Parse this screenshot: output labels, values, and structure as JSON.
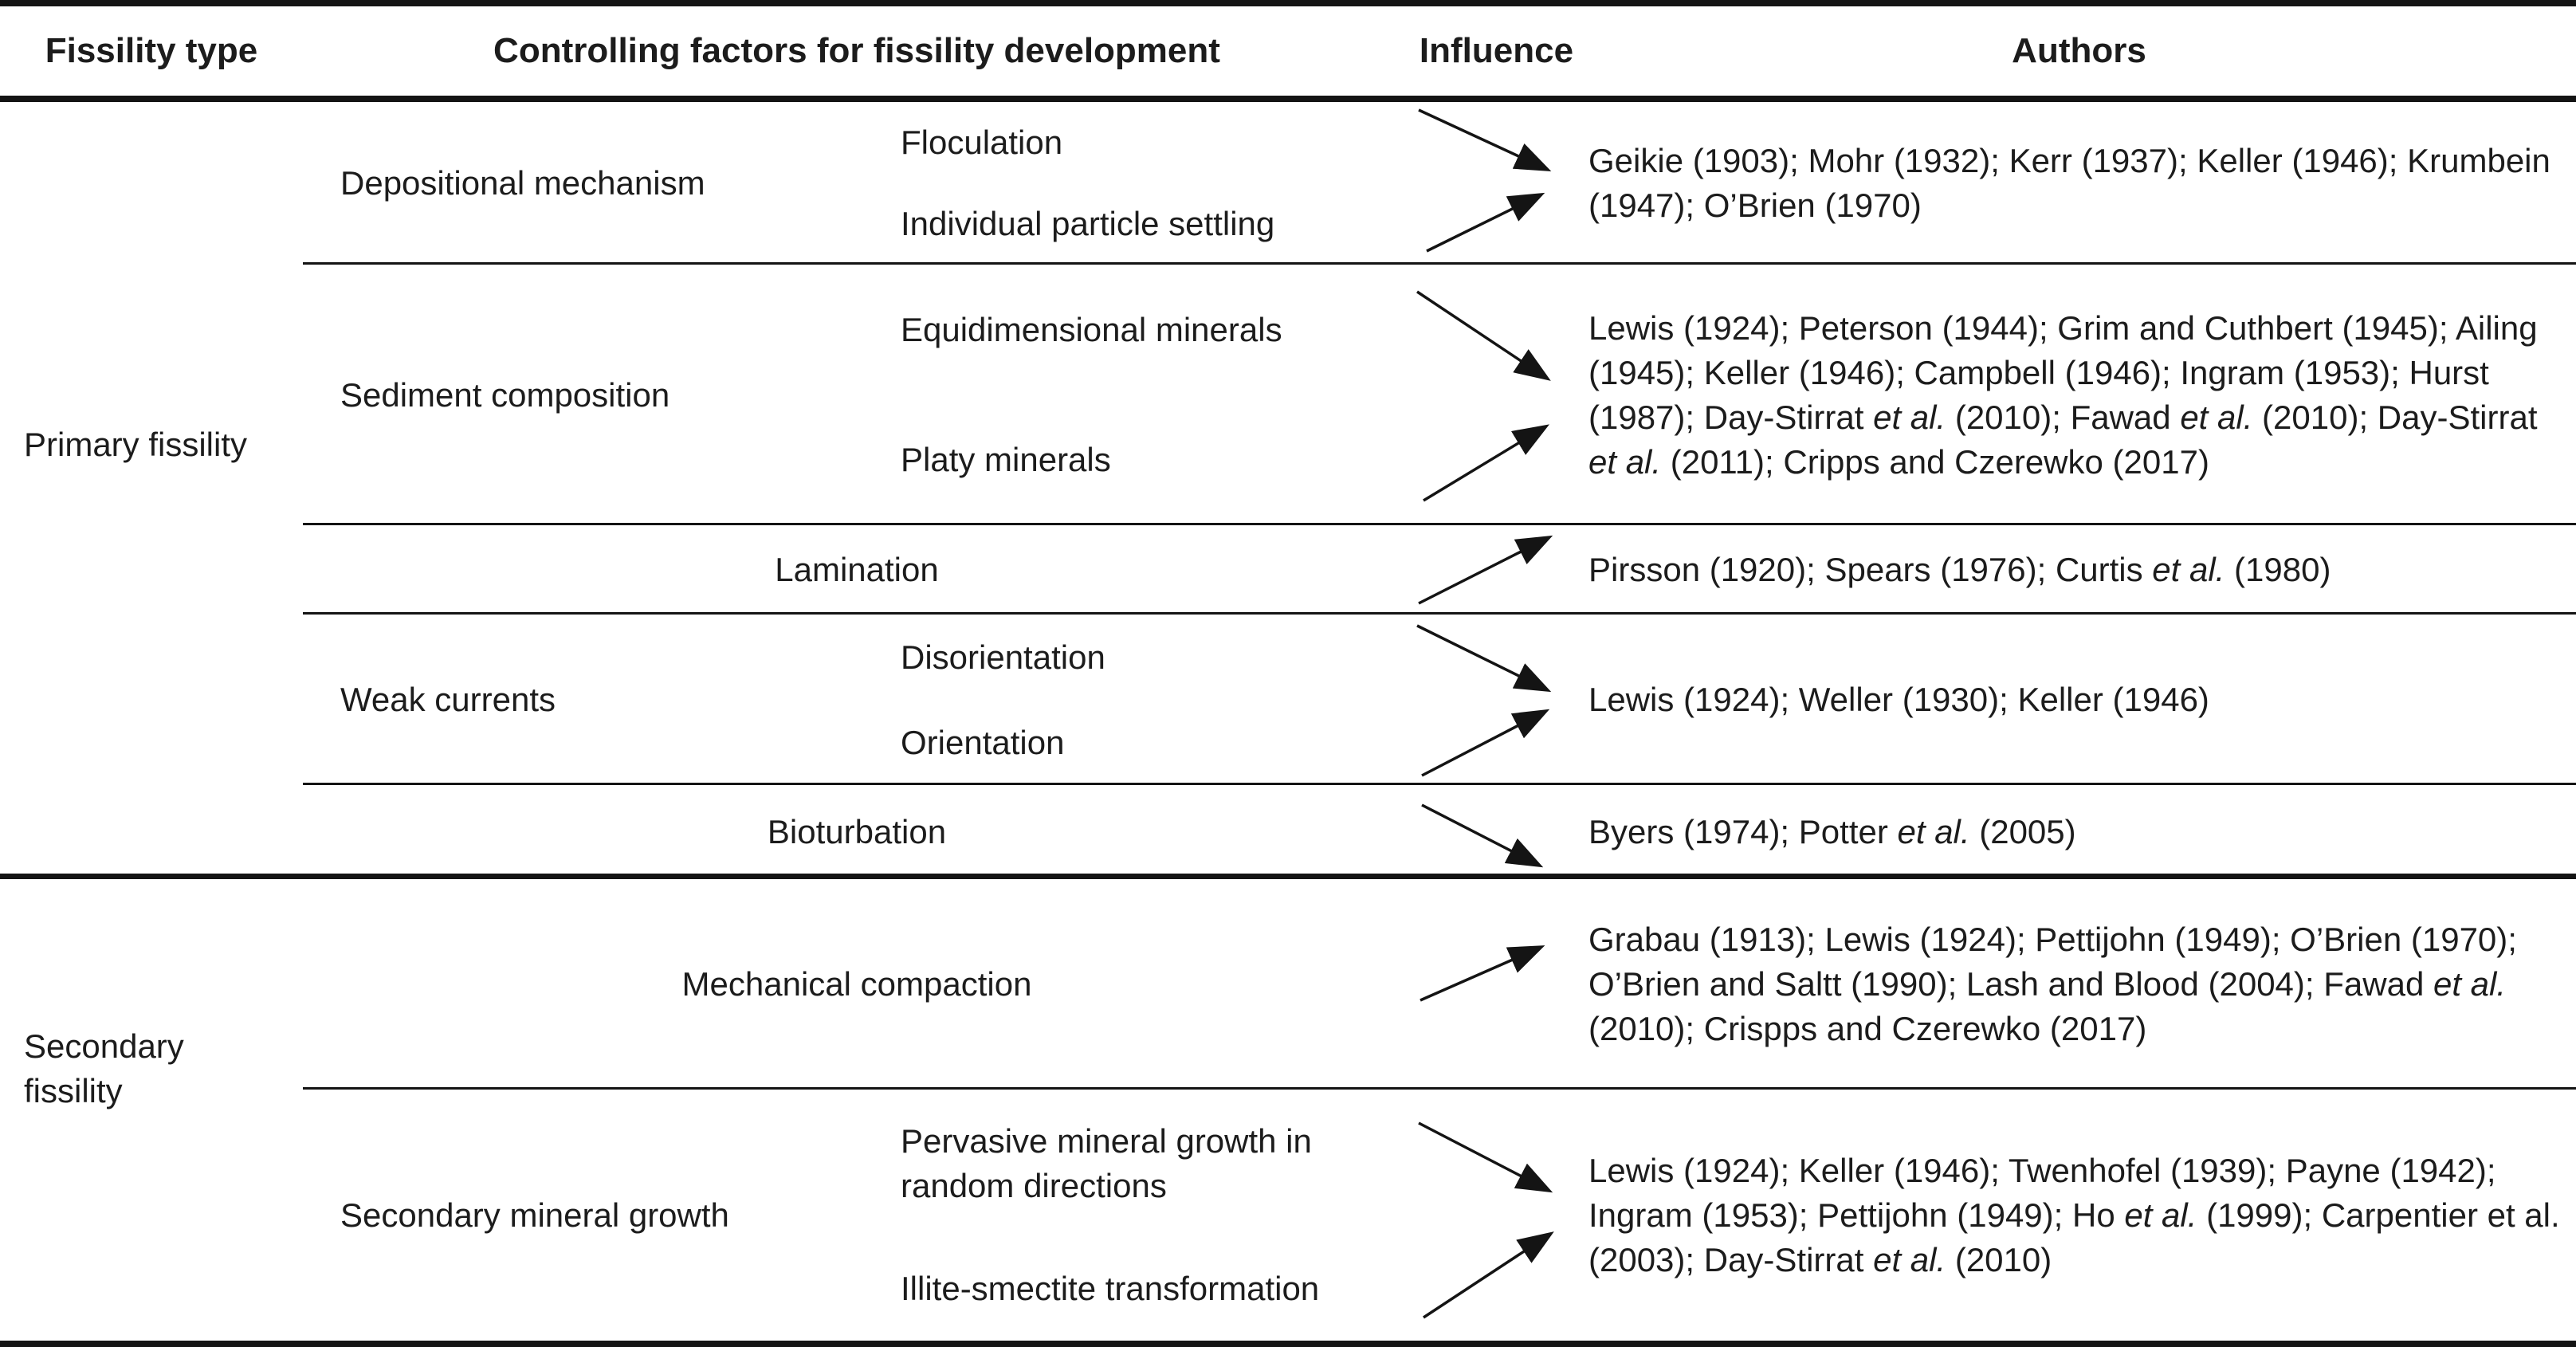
{
  "table": {
    "headers": {
      "fissility_type": "Fissility type",
      "controlling_factors": "Controlling factors for fissility development",
      "influence": "Influence",
      "authors": "Authors"
    },
    "colors": {
      "text": "#1c1c1c",
      "line": "#141414",
      "background": "#ffffff"
    },
    "sections": [
      {
        "label": "Primary fissility",
        "rows": [
          {
            "group": "Depositional mechanism",
            "factors": [
              "Floculation",
              "Individual particle settling"
            ],
            "arrows": [
              "arrow-down-right",
              "arrow-up-right"
            ],
            "authors": "Geikie (1903); Mohr (1932); Kerr (1937); Keller (1946); Krumbein (1947); O’Brien (1970)"
          },
          {
            "group": "Sediment composition",
            "factors": [
              "Equidimensional minerals",
              "Platy minerals"
            ],
            "arrows": [
              "arrow-down-right",
              "arrow-up-right"
            ],
            "authors": "Lewis (1924); Peterson (1944); Grim and Cuthbert (1945); Ailing (1945); Keller (1946); Campbell (1946); Ingram (1953); Hurst (1987); Day-Stirrat *et al.* (2010); Fawad *et al.* (2010); Day-Stirrat *et al.* (2011); Cripps and Czerewko (2017)"
          },
          {
            "factor": "Lamination",
            "arrows": [
              "arrow-up-right"
            ],
            "authors": "Pirsson (1920); Spears (1976); Curtis *et al.* (1980)"
          },
          {
            "group": "Weak currents",
            "factors": [
              "Disorientation",
              "Orientation"
            ],
            "arrows": [
              "arrow-down-right",
              "arrow-up-right"
            ],
            "authors": "Lewis (1924); Weller (1930); Keller (1946)"
          },
          {
            "factor": "Bioturbation",
            "arrows": [
              "arrow-down-right"
            ],
            "authors": "Byers (1974); Potter *et al.* (2005)"
          }
        ]
      },
      {
        "label": "Secondary fissility",
        "rows": [
          {
            "factor": "Mechanical compaction",
            "arrows": [
              "arrow-up-right"
            ],
            "authors": "Grabau (1913); Lewis (1924); Pettijohn (1949); O’Brien (1970); O’Brien and Saltt (1990); Lash and Blood (2004); Fawad *et al.* (2010); Crispps and Czerewko (2017)"
          },
          {
            "group": "Secondary mineral growth",
            "factors": [
              "Pervasive mineral growth in random directions",
              "Illite-smectite transformation"
            ],
            "arrows": [
              "arrow-down-right",
              "arrow-up-right"
            ],
            "authors": "Lewis (1924); Keller (1946); Twenhofel (1939); Payne (1942); Ingram (1953); Pettijohn (1949); Ho *et al.* (1999); Carpentier et al. (2003); Day-Stirrat *et al.* (2010)"
          }
        ]
      }
    ]
  }
}
